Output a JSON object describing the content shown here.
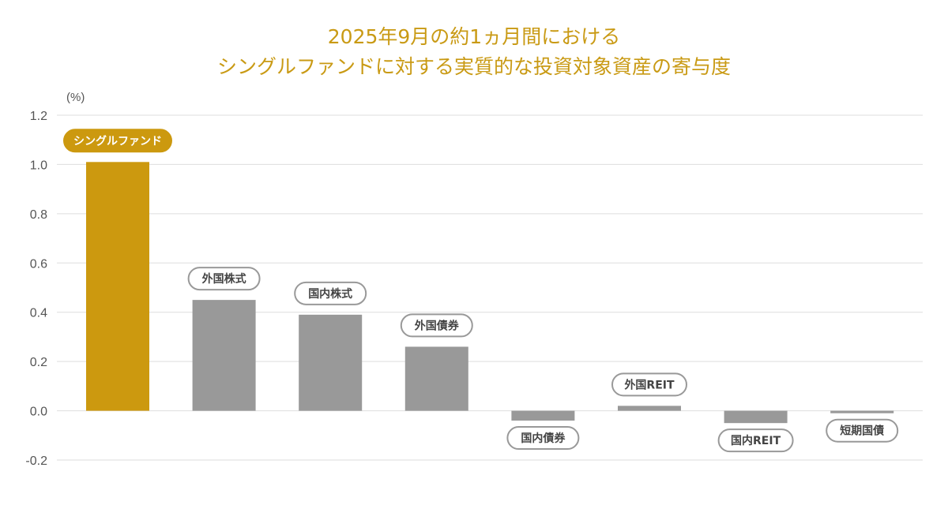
{
  "chart_data": {
    "type": "bar",
    "title_lines": [
      "2025年9月の約1ヵ月間における",
      "シングルファンドに対する実質的な投資対象資産の寄与度"
    ],
    "ylabel": "(%)",
    "xlabel": "",
    "ylim": [
      -0.2,
      1.2
    ],
    "yticks": [
      "-0.2",
      "0.0",
      "0.2",
      "0.4",
      "0.6",
      "0.8",
      "1.0",
      "1.2"
    ],
    "grid": true,
    "categories": [
      "シングルファンド",
      "外国株式",
      "国内株式",
      "外国債券",
      "国内債券",
      "外国REIT",
      "国内REIT",
      "短期国債"
    ],
    "values": [
      1.01,
      0.45,
      0.39,
      0.26,
      -0.04,
      0.02,
      -0.05,
      -0.01
    ],
    "colors": {
      "highlight": "#cc990f",
      "default": "#999999",
      "grid": "#dddddd",
      "title": "#c99a14"
    }
  }
}
